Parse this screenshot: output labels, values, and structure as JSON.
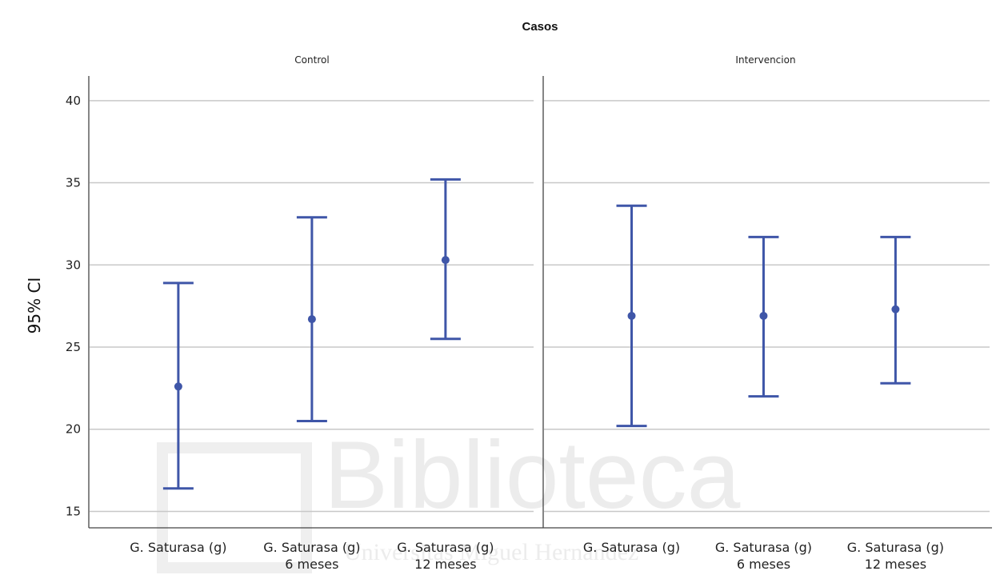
{
  "watermark": {
    "main": "Biblioteca",
    "sub": "Universitas Miguel Hernández"
  },
  "chart_data": {
    "type": "errorbar",
    "title": "Casos",
    "ylabel": "95% CI",
    "xlabel": "",
    "ylim": [
      14,
      41.5
    ],
    "yticks": [
      15,
      20,
      25,
      30,
      35,
      40
    ],
    "grid": true,
    "color": "#3f56a8",
    "categories": [
      [
        "G. Saturasa (g)"
      ],
      [
        "G. Saturasa (g)",
        "6 meses"
      ],
      [
        "G. Saturasa (g)",
        "12 meses"
      ]
    ],
    "panels": [
      {
        "name": "Control",
        "points": [
          {
            "mean": 22.6,
            "lower": 16.4,
            "upper": 28.9
          },
          {
            "mean": 26.7,
            "lower": 20.5,
            "upper": 32.9
          },
          {
            "mean": 30.3,
            "lower": 25.5,
            "upper": 35.2
          }
        ]
      },
      {
        "name": "Intervencion",
        "points": [
          {
            "mean": 26.9,
            "lower": 20.2,
            "upper": 33.6
          },
          {
            "mean": 26.9,
            "lower": 22.0,
            "upper": 31.7
          },
          {
            "mean": 27.3,
            "lower": 22.8,
            "upper": 31.7
          }
        ]
      }
    ]
  }
}
